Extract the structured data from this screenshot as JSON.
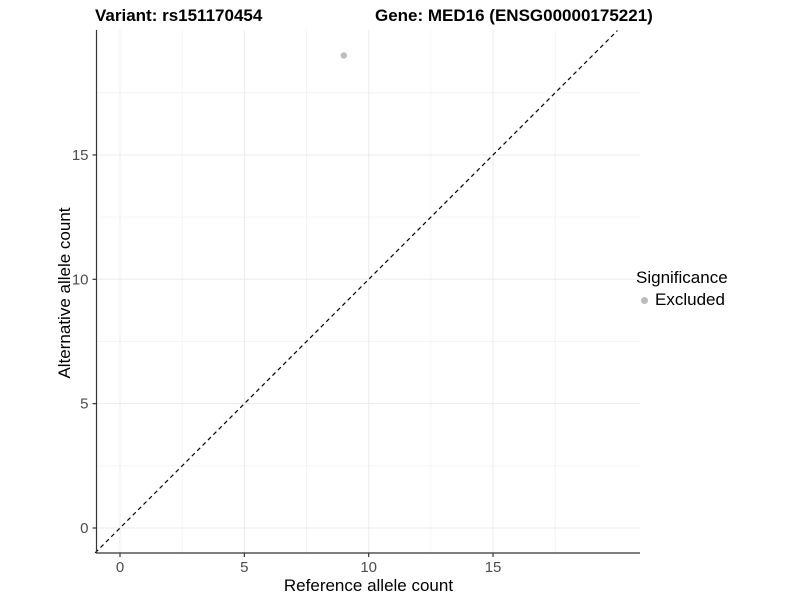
{
  "header": {
    "title_left": "Variant: rs151170454",
    "title_right": "Gene: MED16 (ENSG00000175221)"
  },
  "chart_data": {
    "type": "scatter",
    "title": "Variant: rs151170454   Gene: MED16 (ENSG00000175221)",
    "xlabel": "Reference allele count",
    "ylabel": "Alternative allele count",
    "xlim": [
      -1,
      20.9
    ],
    "ylim": [
      -1,
      20
    ],
    "x_ticks": [
      0,
      5,
      10,
      15
    ],
    "y_ticks": [
      0,
      5,
      10,
      15
    ],
    "x_minor_ticks": [
      2.5,
      7.5,
      12.5,
      17.5
    ],
    "y_minor_ticks": [
      2.5,
      7.5,
      12.5,
      17.5
    ],
    "grid": true,
    "points": [
      {
        "x": 9,
        "y": 19,
        "series": "Excluded",
        "color": "#bdbdbd"
      }
    ],
    "reference_line": {
      "type": "identity",
      "style": "dashed",
      "color": "#000000",
      "from": [
        -1,
        -1
      ],
      "to": [
        20,
        20
      ]
    },
    "colors": {
      "axis_line": "#333333",
      "tick_label": "#4d4d4d",
      "grid_major": "#ebebeb",
      "grid_minor": "#f4f4f4",
      "panel_background": "#ffffff"
    }
  },
  "legend": {
    "title": "Significance",
    "position": "right",
    "entries": [
      {
        "label": "Excluded",
        "color": "#bdbdbd"
      }
    ]
  }
}
